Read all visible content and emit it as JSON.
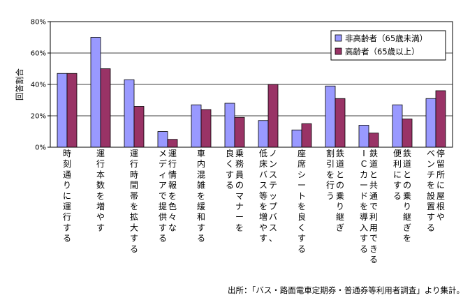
{
  "chart_data": {
    "type": "bar",
    "title": "",
    "ylabel": "回答割合",
    "xlabel": "",
    "ylim": [
      0,
      80
    ],
    "yticks": [
      "0%",
      "20%",
      "40%",
      "60%",
      "80%"
    ],
    "grid": true,
    "legend_position": "top-right",
    "categories": [
      "時刻通りに運行する",
      "運行本数を増やす",
      "運行時間帯を拡大する",
      "運行情報を色々なメディアで提供する",
      "車内混雑を緩和する",
      "乗務員のマナーを良くする",
      "ノンステップバス、低床バス等を増やす",
      "座席シートを良くする",
      "鉄道との乗り継ぎ割引を行う",
      "鉄道と共通で利用できるICカードを導入する",
      "鉄道との乗り継ぎを便利にする",
      "停留所に屋根やベンチを設置する"
    ],
    "category_lines": [
      [
        "時刻通りに運行する"
      ],
      [
        "運行本数を増やす"
      ],
      [
        "運行時間帯を拡大する"
      ],
      [
        "メディアで提供する",
        "運行情報を色々な"
      ],
      [
        "車内混雑を緩和する"
      ],
      [
        "良くする",
        "乗務員のマナーを"
      ],
      [
        "低床バス等を増やす",
        "ノンステップバス、"
      ],
      [
        "座席シートを良くする"
      ],
      [
        "割引を行う",
        "鉄道との乗り継ぎ"
      ],
      [
        "ICカードを導入する",
        "鉄道と共通で利用できる"
      ],
      [
        "便利にする",
        "鉄道との乗り継ぎを"
      ],
      [
        "ベンチを設置する",
        "停留所に屋根や"
      ]
    ],
    "series": [
      {
        "name": "非高齢者（65歳未満）",
        "color": "#9999ff",
        "values": [
          47,
          70,
          43,
          10,
          27,
          28,
          17,
          11,
          39,
          14,
          27,
          31
        ]
      },
      {
        "name": "高齢者（65歳以上）",
        "color": "#993366",
        "values": [
          47,
          50,
          26,
          5,
          24,
          19,
          40,
          15,
          31,
          9,
          18,
          36
        ]
      }
    ]
  },
  "source_note": "出所：「バス・路面電車定期券・普通券等利用者調査」より集計。"
}
